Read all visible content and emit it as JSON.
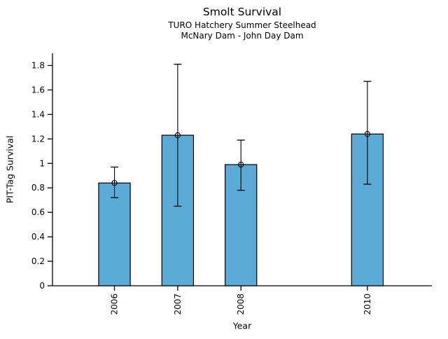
{
  "chart_data": {
    "type": "bar",
    "title": "Smolt Survival",
    "subtitle": [
      "TURO Hatchery Summer Steelhead",
      "McNary Dam - John Day Dam"
    ],
    "xlabel": "Year",
    "ylabel": "PIT-Tag Survival",
    "categories": [
      "2006",
      "2007",
      "2008",
      "2010"
    ],
    "x": [
      2006,
      2007,
      2008,
      2010
    ],
    "values": [
      0.84,
      1.23,
      0.99,
      1.24
    ],
    "error_low": [
      0.72,
      0.65,
      0.78,
      0.83
    ],
    "error_high": [
      0.97,
      1.81,
      1.19,
      1.67
    ],
    "marker": "open-circle",
    "bar_color": "#5CAAD6",
    "bar_edge_color": "#000000",
    "error_color": "#000000",
    "axis_color": "#000000",
    "xlim": [
      2005.02,
      2011.02
    ],
    "ylim": [
      0,
      1.9
    ],
    "bar_width_x": 0.5,
    "yticks": [
      0,
      0.2,
      0.4,
      0.6,
      0.8,
      1,
      1.2,
      1.4,
      1.6,
      1.8
    ],
    "ytick_labels": [
      "0",
      "0.2",
      "0.4",
      "0.6",
      "0.8",
      "1",
      "1.2",
      "1.4",
      "1.6",
      "1.8"
    ],
    "x_tick_rotation": -90,
    "grid": false,
    "legend": "none"
  }
}
